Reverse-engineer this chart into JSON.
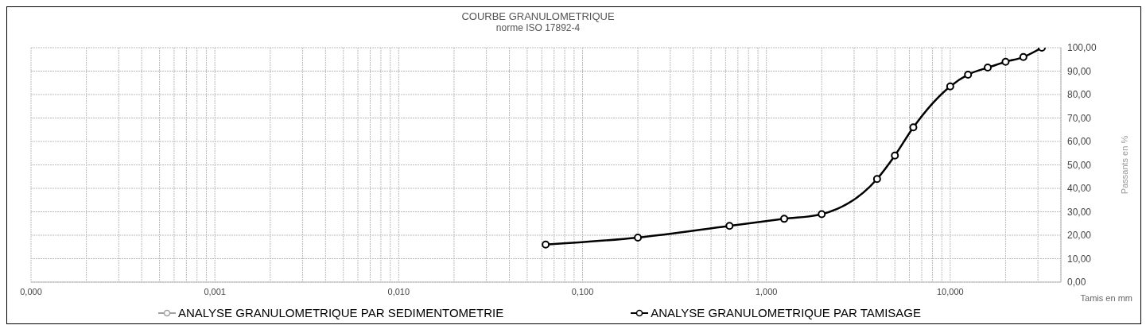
{
  "chart_data": {
    "type": "line",
    "title": "COURBE GRANULOMETRIQUE",
    "subtitle": "norme ISO 17892-4",
    "xlabel": "Tamis en mm",
    "ylabel": "Passants en %",
    "log": "x",
    "xlim": [
      0.0001,
      40
    ],
    "xticks": [
      {
        "value": 0.0001,
        "label": "0,000"
      },
      {
        "value": 0.0002,
        "label": null
      },
      {
        "value": 0.0003,
        "label": null
      },
      {
        "value": 0.0004,
        "label": null
      },
      {
        "value": 0.0005,
        "label": null
      },
      {
        "value": 0.0006,
        "label": null
      },
      {
        "value": 0.0007,
        "label": null
      },
      {
        "value": 0.0008,
        "label": null
      },
      {
        "value": 0.0009,
        "label": null
      },
      {
        "value": 0.001,
        "label": "0,001"
      },
      {
        "value": 0.002,
        "label": null
      },
      {
        "value": 0.003,
        "label": null
      },
      {
        "value": 0.004,
        "label": null
      },
      {
        "value": 0.005,
        "label": null
      },
      {
        "value": 0.006,
        "label": null
      },
      {
        "value": 0.007,
        "label": null
      },
      {
        "value": 0.008,
        "label": null
      },
      {
        "value": 0.009,
        "label": null
      },
      {
        "value": 0.01,
        "label": "0,010"
      },
      {
        "value": 0.02,
        "label": null
      },
      {
        "value": 0.03,
        "label": null
      },
      {
        "value": 0.04,
        "label": null
      },
      {
        "value": 0.05,
        "label": null
      },
      {
        "value": 0.06,
        "label": null
      },
      {
        "value": 0.07,
        "label": null
      },
      {
        "value": 0.08,
        "label": null
      },
      {
        "value": 0.09,
        "label": null
      },
      {
        "value": 0.1,
        "label": "0,100"
      },
      {
        "value": 0.2,
        "label": null
      },
      {
        "value": 0.3,
        "label": null
      },
      {
        "value": 0.4,
        "label": null
      },
      {
        "value": 0.5,
        "label": null
      },
      {
        "value": 0.6,
        "label": null
      },
      {
        "value": 0.7,
        "label": null
      },
      {
        "value": 0.8,
        "label": null
      },
      {
        "value": 0.9,
        "label": null
      },
      {
        "value": 1,
        "label": "1,000"
      },
      {
        "value": 2,
        "label": null
      },
      {
        "value": 3,
        "label": null
      },
      {
        "value": 4,
        "label": null
      },
      {
        "value": 5,
        "label": null
      },
      {
        "value": 6,
        "label": null
      },
      {
        "value": 7,
        "label": null
      },
      {
        "value": 8,
        "label": null
      },
      {
        "value": 9,
        "label": null
      },
      {
        "value": 10,
        "label": "10,000"
      },
      {
        "value": 20,
        "label": null
      },
      {
        "value": 30,
        "label": null
      },
      {
        "value": 40,
        "label": null
      }
    ],
    "ylim": [
      0,
      100
    ],
    "yticks": [
      {
        "value": 0,
        "label": "0,00"
      },
      {
        "value": 10,
        "label": "10,00"
      },
      {
        "value": 20,
        "label": "20,00"
      },
      {
        "value": 30,
        "label": "30,00"
      },
      {
        "value": 40,
        "label": "40,00"
      },
      {
        "value": 50,
        "label": "50,00"
      },
      {
        "value": 60,
        "label": "60,00"
      },
      {
        "value": 70,
        "label": "70,00"
      },
      {
        "value": 80,
        "label": "80,00"
      },
      {
        "value": 90,
        "label": "90,00"
      },
      {
        "value": 100,
        "label": "100,00"
      }
    ],
    "grid": true,
    "legend": "bottom",
    "marker": "circle",
    "line_style": "solid",
    "series": [
      {
        "name": "ANALYSE GRANULOMETRIQUE PAR SEDIMENTOMETRIE",
        "color": "#a0a0a0"
      },
      {
        "name": "ANALYSE GRANULOMETRIQUE PAR TAMISAGE",
        "color": "#000000",
        "x": [
          0.063,
          0.2,
          0.63,
          1.25,
          2,
          4,
          5,
          6.3,
          10,
          12.5,
          16,
          20,
          25,
          31.5
        ],
        "values": [
          16,
          19,
          24,
          27,
          29,
          44,
          54,
          66,
          83.5,
          88.5,
          91.5,
          94,
          96,
          100
        ]
      }
    ]
  }
}
